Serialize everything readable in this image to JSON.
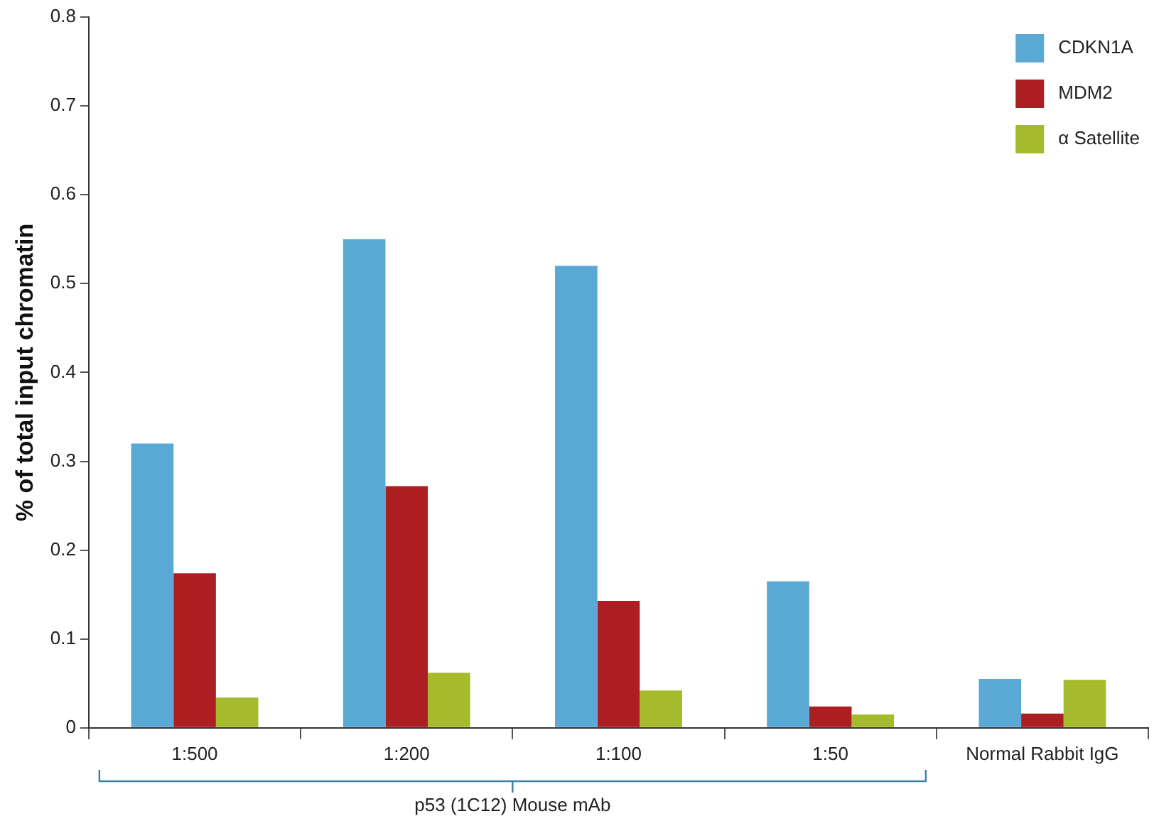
{
  "chart_data": {
    "type": "bar",
    "ylabel": "% of total input chromatin",
    "categories": [
      "1:500",
      "1:200",
      "1:100",
      "1:50",
      "Normal Rabbit IgG"
    ],
    "series": [
      {
        "name": "CDKN1A",
        "color": "#5aa9d4",
        "values": [
          0.32,
          0.55,
          0.52,
          0.165,
          0.055
        ]
      },
      {
        "name": "MDM2",
        "color": "#ad1e23",
        "values": [
          0.174,
          0.272,
          0.143,
          0.024,
          0.016
        ]
      },
      {
        "name": "α Satellite",
        "color": "#a6bb2b",
        "values": [
          0.034,
          0.062,
          0.042,
          0.015,
          0.054
        ]
      }
    ],
    "ylim": [
      0,
      0.8
    ],
    "yticks": [
      0,
      0.1,
      0.2,
      0.3,
      0.4,
      0.5,
      0.6,
      0.7,
      0.8
    ],
    "grid": false,
    "legend": "top right",
    "annotations": [
      "p53 (1C12) Mouse mAb"
    ]
  }
}
